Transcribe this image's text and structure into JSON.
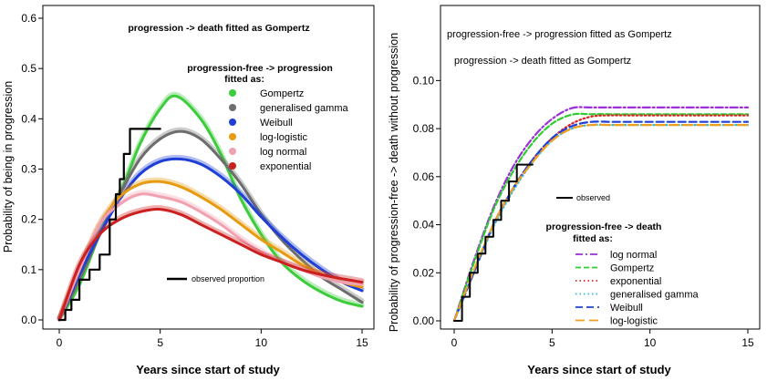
{
  "chart_data": [
    {
      "type": "line",
      "xlabel": "Years since start of study",
      "ylabel": "Probability of being in progression",
      "xlim": [
        0,
        15
      ],
      "ylim": [
        0,
        0.6
      ],
      "xticks": [
        "0",
        "5",
        "10",
        "15"
      ],
      "yticks": [
        "0.0",
        "0.1",
        "0.2",
        "0.3",
        "0.4",
        "0.5",
        "0.6"
      ],
      "annotations": [
        "progression -> death fitted as Gompertz"
      ],
      "legend_title": [
        "progression-free -> progression",
        "fitted as:"
      ],
      "observed_label": "observed proportion",
      "series": [
        {
          "name": "Gompertz",
          "color": "#3ccc3c",
          "x": [
            0,
            1,
            2,
            3,
            4,
            5,
            5.8,
            7,
            8,
            9,
            10,
            11,
            12,
            13,
            14,
            15
          ],
          "values": [
            0,
            0.07,
            0.17,
            0.25,
            0.35,
            0.42,
            0.445,
            0.4,
            0.33,
            0.24,
            0.17,
            0.115,
            0.08,
            0.055,
            0.037,
            0.027
          ]
        },
        {
          "name": "generalised gamma",
          "color": "#6e6e6e",
          "x": [
            0,
            1,
            2,
            3,
            4,
            5,
            6,
            7,
            8,
            9,
            10,
            11,
            12,
            13,
            14,
            15
          ],
          "values": [
            0,
            0.08,
            0.17,
            0.25,
            0.32,
            0.36,
            0.375,
            0.36,
            0.32,
            0.27,
            0.21,
            0.16,
            0.12,
            0.085,
            0.06,
            0.035
          ]
        },
        {
          "name": "Weibull",
          "color": "#1f3fd6",
          "x": [
            0,
            1,
            2,
            3,
            4,
            5,
            6,
            7,
            8,
            9,
            10,
            11,
            12,
            13,
            14,
            15
          ],
          "values": [
            0,
            0.09,
            0.17,
            0.24,
            0.29,
            0.315,
            0.32,
            0.31,
            0.285,
            0.25,
            0.205,
            0.165,
            0.13,
            0.1,
            0.075,
            0.058
          ]
        },
        {
          "name": "log-logistic",
          "color": "#e89a10",
          "x": [
            0,
            1,
            2,
            3,
            4,
            5,
            6,
            7,
            8,
            9,
            10,
            11,
            12,
            13,
            14,
            15
          ],
          "values": [
            0,
            0.1,
            0.19,
            0.245,
            0.27,
            0.275,
            0.265,
            0.245,
            0.22,
            0.19,
            0.16,
            0.135,
            0.11,
            0.09,
            0.075,
            0.065
          ]
        },
        {
          "name": "log normal",
          "color": "#f0a0b0",
          "x": [
            0,
            1,
            2,
            3,
            4,
            5,
            6,
            7,
            8,
            9,
            10,
            11,
            12,
            13,
            14,
            15
          ],
          "values": [
            0,
            0.1,
            0.19,
            0.23,
            0.25,
            0.245,
            0.235,
            0.215,
            0.19,
            0.16,
            0.135,
            0.115,
            0.1,
            0.085,
            0.075,
            0.07
          ]
        },
        {
          "name": "exponential",
          "color": "#cc2020",
          "x": [
            0,
            1,
            2,
            3,
            4,
            5,
            6,
            7,
            8,
            9,
            10,
            11,
            12,
            13,
            14,
            15
          ],
          "values": [
            0,
            0.11,
            0.17,
            0.2,
            0.215,
            0.22,
            0.21,
            0.19,
            0.17,
            0.15,
            0.13,
            0.115,
            0.1,
            0.09,
            0.082,
            0.075
          ]
        },
        {
          "name": "observed proportion",
          "color": "#000000",
          "step": true,
          "x": [
            0,
            0.3,
            0.6,
            1.0,
            1.5,
            2.0,
            2.5,
            2.8,
            3.0,
            3.2,
            3.5,
            4.0,
            4.3,
            5
          ],
          "values": [
            0,
            0.02,
            0.04,
            0.08,
            0.1,
            0.13,
            0.2,
            0.25,
            0.28,
            0.33,
            0.38,
            0.38,
            0.38,
            0.38
          ]
        }
      ]
    },
    {
      "type": "line",
      "xlabel": "Years since start of study",
      "ylabel": "Probability of progression-free -> death without progression",
      "xlim": [
        0,
        15
      ],
      "ylim": [
        0,
        0.11
      ],
      "xticks": [
        "0",
        "5",
        "10",
        "15"
      ],
      "yticks": [
        "0.00",
        "0.02",
        "0.04",
        "0.06",
        "0.08",
        "0.10"
      ],
      "annotations": [
        "progression-free -> progression fitted as Gompertz",
        "progression -> death fitted as Gompertz"
      ],
      "legend_title": [
        "progression-free -> death",
        "fitted as:"
      ],
      "observed_label": "observed",
      "series": [
        {
          "name": "log normal",
          "color": "#9b30d9",
          "dash": "8,3,2,3",
          "x": [
            0,
            1,
            2,
            3,
            4,
            5,
            6,
            7,
            8,
            9,
            10,
            11,
            12,
            13,
            14,
            15
          ],
          "values": [
            0,
            0.025,
            0.047,
            0.064,
            0.076,
            0.084,
            0.0885,
            0.0888,
            0.0888,
            0.0888,
            0.0888,
            0.0888,
            0.0888,
            0.0888,
            0.0888,
            0.0888
          ]
        },
        {
          "name": "Gompertz",
          "color": "#2ecc2e",
          "dash": "6,3",
          "x": [
            0,
            1,
            2,
            3,
            4,
            5,
            6,
            7,
            8,
            9,
            10,
            11,
            12,
            13,
            14,
            15
          ],
          "values": [
            0,
            0.024,
            0.046,
            0.062,
            0.074,
            0.082,
            0.0858,
            0.086,
            0.086,
            0.086,
            0.086,
            0.086,
            0.086,
            0.086,
            0.086,
            0.086
          ]
        },
        {
          "name": "exponential",
          "color": "#dd2222",
          "dash": "1.5,3",
          "x": [
            0,
            1,
            2,
            3,
            4,
            5,
            6,
            7,
            8,
            9,
            10,
            11,
            12,
            13,
            14,
            15
          ],
          "values": [
            0,
            0.02,
            0.04,
            0.055,
            0.067,
            0.076,
            0.082,
            0.085,
            0.0855,
            0.0855,
            0.0855,
            0.0855,
            0.0855,
            0.0855,
            0.0855,
            0.0855
          ]
        },
        {
          "name": "generalised gamma",
          "color": "#33bbdd",
          "dash": "1.5,3",
          "x": [
            0,
            1,
            2,
            3,
            4,
            5,
            6,
            7,
            8,
            9,
            10,
            11,
            12,
            13,
            14,
            15
          ],
          "values": [
            0,
            0.02,
            0.039,
            0.054,
            0.066,
            0.075,
            0.08,
            0.0815,
            0.0815,
            0.0815,
            0.0815,
            0.0815,
            0.0815,
            0.0815,
            0.0815,
            0.0815
          ]
        },
        {
          "name": "Weibull",
          "color": "#1f3fd6",
          "dash": "8,4",
          "x": [
            0,
            1,
            2,
            3,
            4,
            5,
            6,
            7,
            8,
            9,
            10,
            11,
            12,
            13,
            14,
            15
          ],
          "values": [
            0,
            0.02,
            0.04,
            0.055,
            0.067,
            0.076,
            0.081,
            0.0828,
            0.0828,
            0.0828,
            0.0828,
            0.0828,
            0.0828,
            0.0828,
            0.0828,
            0.0828
          ]
        },
        {
          "name": "log-logistic",
          "color": "#f0a020",
          "dash": "10,5",
          "x": [
            0,
            1,
            2,
            3,
            4,
            5,
            6,
            7,
            8,
            9,
            10,
            11,
            12,
            13,
            14,
            15
          ],
          "values": [
            0,
            0.021,
            0.04,
            0.055,
            0.066,
            0.075,
            0.08,
            0.0815,
            0.0815,
            0.0815,
            0.0815,
            0.0815,
            0.0815,
            0.0815,
            0.0815,
            0.0815
          ]
        },
        {
          "name": "observed",
          "color": "#000000",
          "step": true,
          "x": [
            0,
            0.4,
            0.8,
            1.2,
            1.6,
            2.0,
            2.4,
            2.8,
            3.2,
            3.6,
            4.0
          ],
          "values": [
            0,
            0.01,
            0.02,
            0.028,
            0.035,
            0.042,
            0.05,
            0.058,
            0.065,
            0.065,
            0.065
          ]
        }
      ]
    }
  ]
}
